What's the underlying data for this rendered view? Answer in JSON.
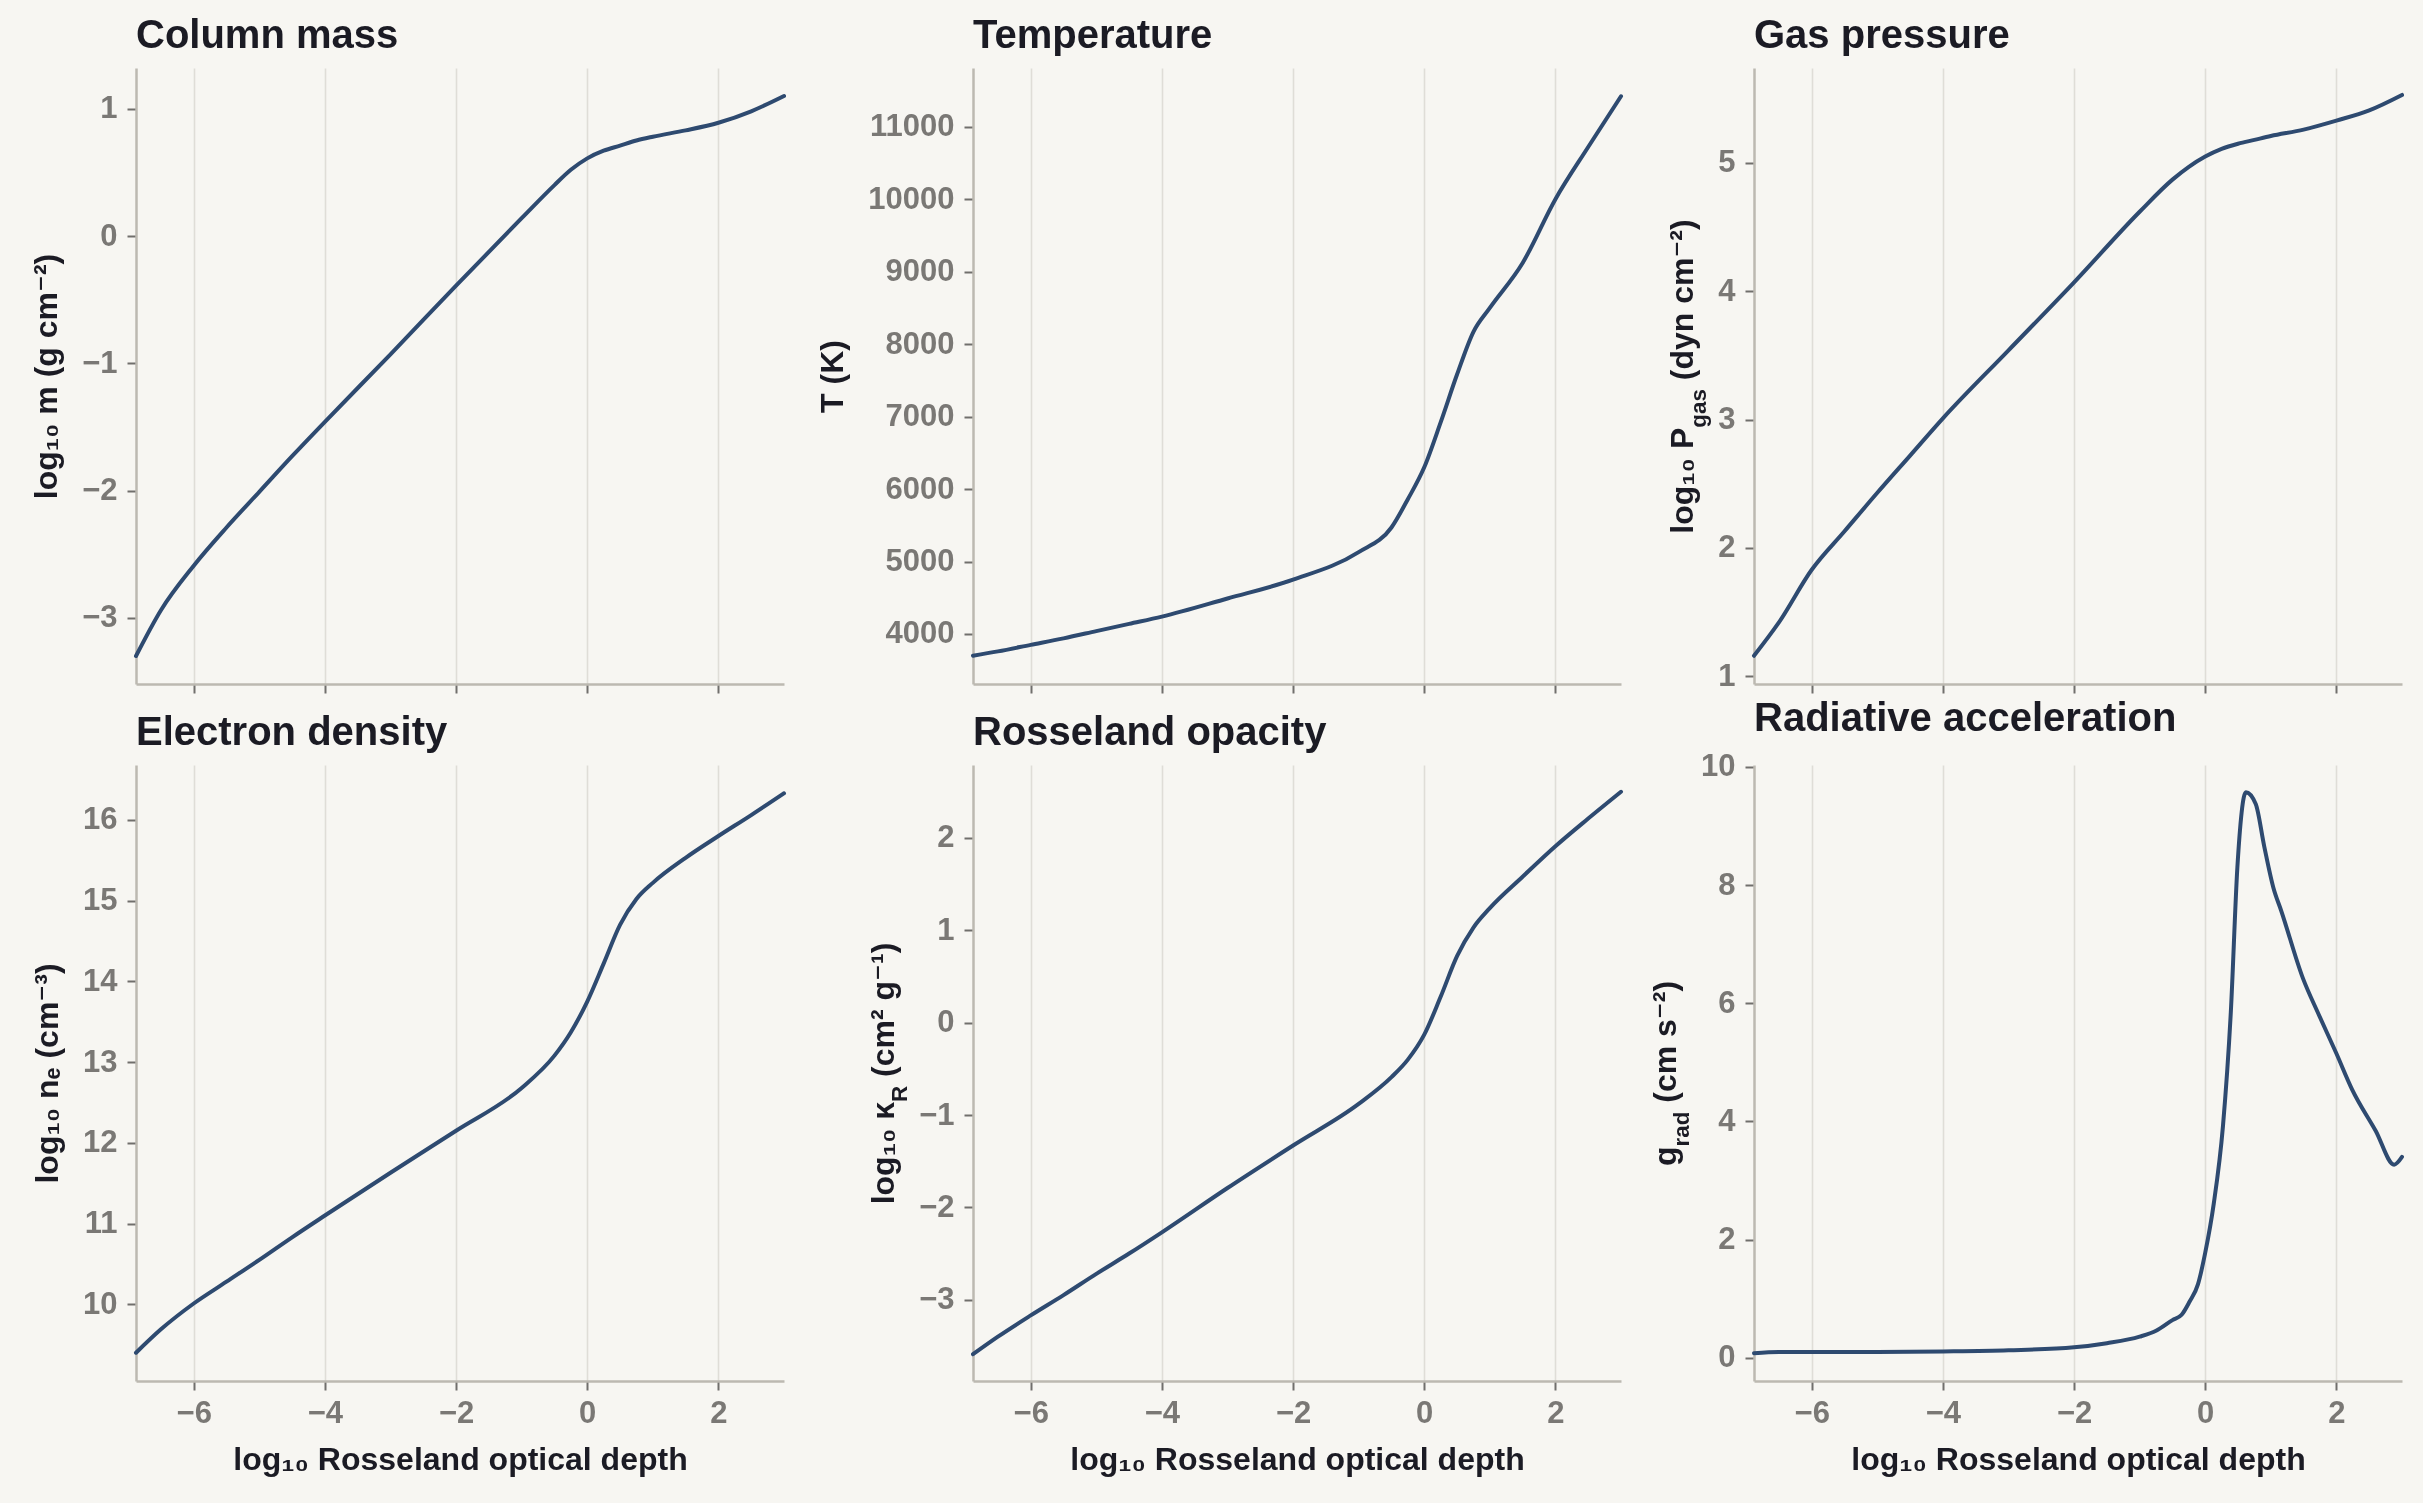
{
  "chart_data": [
    {
      "type": "line",
      "title": "Column mass",
      "ylabel": "log₁₀ m (g cm⁻²)",
      "x": [
        -6.88,
        -6.5,
        -6,
        -5.5,
        -5,
        -4.5,
        -4,
        -3,
        -2,
        -1,
        -0.5,
        -0.25,
        0,
        0.25,
        0.5,
        0.75,
        1,
        1.5,
        2,
        2.5,
        3
      ],
      "values": [
        -3.3,
        -2.94,
        -2.59,
        -2.29,
        -2.01,
        -1.73,
        -1.46,
        -0.93,
        -0.39,
        0.14,
        0.4,
        0.52,
        0.61,
        0.67,
        0.71,
        0.75,
        0.78,
        0.83,
        0.89,
        0.98,
        1.1
      ],
      "color": "#2e4a70",
      "xlim": [
        -6.88,
        3.0
      ],
      "xticks": [
        -6,
        -4,
        -2,
        0,
        2
      ],
      "ylim": [
        -3.52,
        1.32
      ],
      "yticks": [
        -3,
        -2,
        -1,
        0,
        1
      ],
      "grid": "x",
      "tick_labels": "y"
    },
    {
      "type": "line",
      "title": "Temperature",
      "ylabel": "T (K)",
      "x": [
        -6.88,
        -6.5,
        -6,
        -5.5,
        -5,
        -4.5,
        -4,
        -3,
        -2,
        -1,
        -0.5,
        -0.25,
        0,
        0.25,
        0.5,
        0.75,
        1,
        1.5,
        2,
        2.5,
        3
      ],
      "values": [
        3700,
        3760,
        3850,
        3940,
        4040,
        4140,
        4240,
        4490,
        4750,
        5130,
        5470,
        5860,
        6300,
        6920,
        7580,
        8170,
        8500,
        9120,
        10000,
        10720,
        11420
      ],
      "color": "#2e4a70",
      "xlim": [
        -6.88,
        3.0
      ],
      "xticks": [
        -6,
        -4,
        -2,
        0,
        2
      ],
      "ylim": [
        3310,
        11810
      ],
      "yticks": [
        4000,
        5000,
        6000,
        7000,
        8000,
        9000,
        10000,
        11000
      ],
      "grid": "x",
      "tick_labels": "y"
    },
    {
      "type": "line",
      "title": "Gas pressure",
      "ylabel": "log₁₀ P$_{gas}$ (dyn cm⁻²)",
      "x": [
        -6.88,
        -6.5,
        -6,
        -5.5,
        -5,
        -4.5,
        -4,
        -3,
        -2,
        -1,
        -0.5,
        -0.25,
        0,
        0.25,
        0.5,
        0.75,
        1,
        1.5,
        2,
        2.5,
        3
      ],
      "values": [
        1.16,
        1.42,
        1.83,
        2.13,
        2.43,
        2.72,
        3.01,
        3.54,
        4.07,
        4.62,
        4.87,
        4.97,
        5.05,
        5.11,
        5.15,
        5.18,
        5.21,
        5.26,
        5.33,
        5.41,
        5.53
      ],
      "color": "#2e4a70",
      "xlim": [
        -6.88,
        3.0
      ],
      "xticks": [
        -6,
        -4,
        -2,
        0,
        2
      ],
      "ylim": [
        0.94,
        5.74
      ],
      "yticks": [
        1,
        2,
        3,
        4,
        5
      ],
      "grid": "x",
      "tick_labels": "y"
    },
    {
      "type": "line",
      "title": "Electron density",
      "xlabel": "log₁₀ Rosseland optical depth",
      "ylabel": "log₁₀ nₑ (cm⁻³)",
      "x": [
        -6.88,
        -6.5,
        -6,
        -5.5,
        -5,
        -4.5,
        -4,
        -3,
        -2,
        -1,
        -0.5,
        -0.25,
        0,
        0.25,
        0.5,
        0.75,
        1,
        1.5,
        2,
        2.5,
        3
      ],
      "values": [
        9.4,
        9.69,
        10.01,
        10.28,
        10.55,
        10.83,
        11.1,
        11.63,
        12.15,
        12.68,
        13.08,
        13.37,
        13.75,
        14.22,
        14.7,
        15.02,
        15.22,
        15.53,
        15.8,
        16.06,
        16.33
      ],
      "color": "#2e4a70",
      "xlim": [
        -6.88,
        3.0
      ],
      "xticks": [
        -6,
        -4,
        -2,
        0,
        2
      ],
      "ylim": [
        9.05,
        16.68
      ],
      "yticks": [
        10,
        11,
        12,
        13,
        14,
        15,
        16
      ],
      "grid": "x"
    },
    {
      "type": "line",
      "title": "Rosseland opacity",
      "xlabel": "log₁₀ Rosseland optical depth",
      "ylabel": "log₁₀ κ$_{R}$ (cm² g⁻¹)",
      "x": [
        -6.88,
        -6.5,
        -6,
        -5.5,
        -5,
        -4.5,
        -4,
        -3,
        -2,
        -1,
        -0.5,
        -0.25,
        0,
        0.25,
        0.5,
        0.75,
        1,
        1.5,
        2,
        2.5,
        3
      ],
      "values": [
        -3.59,
        -3.4,
        -3.17,
        -2.95,
        -2.72,
        -2.5,
        -2.27,
        -1.79,
        -1.33,
        -0.88,
        -0.59,
        -0.4,
        -0.13,
        0.28,
        0.72,
        1.03,
        1.24,
        1.58,
        1.91,
        2.21,
        2.5
      ],
      "color": "#2e4a70",
      "xlim": [
        -6.88,
        3.0
      ],
      "xticks": [
        -6,
        -4,
        -2,
        0,
        2
      ],
      "ylim": [
        -3.88,
        2.79
      ],
      "yticks": [
        -3,
        -2,
        -1,
        0,
        1,
        2
      ],
      "grid": "x"
    },
    {
      "type": "line",
      "title": "Radiative acceleration",
      "xlabel": "log₁₀ Rosseland optical depth",
      "ylabel": "g$_{rad}$ (cm s⁻²)",
      "x": [
        -6.88,
        -6.5,
        -6,
        -5,
        -4,
        -3,
        -2,
        -1.5,
        -1,
        -0.75,
        -0.5,
        -0.36,
        -0.24,
        -0.11,
        0,
        0.13,
        0.27,
        0.39,
        0.49,
        0.62,
        0.77,
        0.9,
        1.04,
        1.16,
        1.49,
        1.73,
        2,
        2.24,
        2.6,
        2.88,
        3.0
      ],
      "values": [
        0.08,
        0.1,
        0.1,
        0.1,
        0.11,
        0.13,
        0.18,
        0.25,
        0.36,
        0.46,
        0.64,
        0.73,
        0.95,
        1.25,
        1.78,
        2.61,
        3.92,
        5.85,
        8.3,
        9.57,
        9.37,
        8.65,
        7.95,
        7.56,
        6.42,
        5.81,
        5.15,
        4.54,
        3.84,
        3.27,
        3.4
      ],
      "color": "#2e4a70",
      "xlim": [
        -6.88,
        3.0
      ],
      "xticks": [
        -6,
        -4,
        -2,
        0,
        2
      ],
      "ylim": [
        -0.39,
        10.03
      ],
      "yticks": [
        0,
        2,
        4,
        6,
        8,
        10
      ],
      "grid": "x"
    }
  ]
}
